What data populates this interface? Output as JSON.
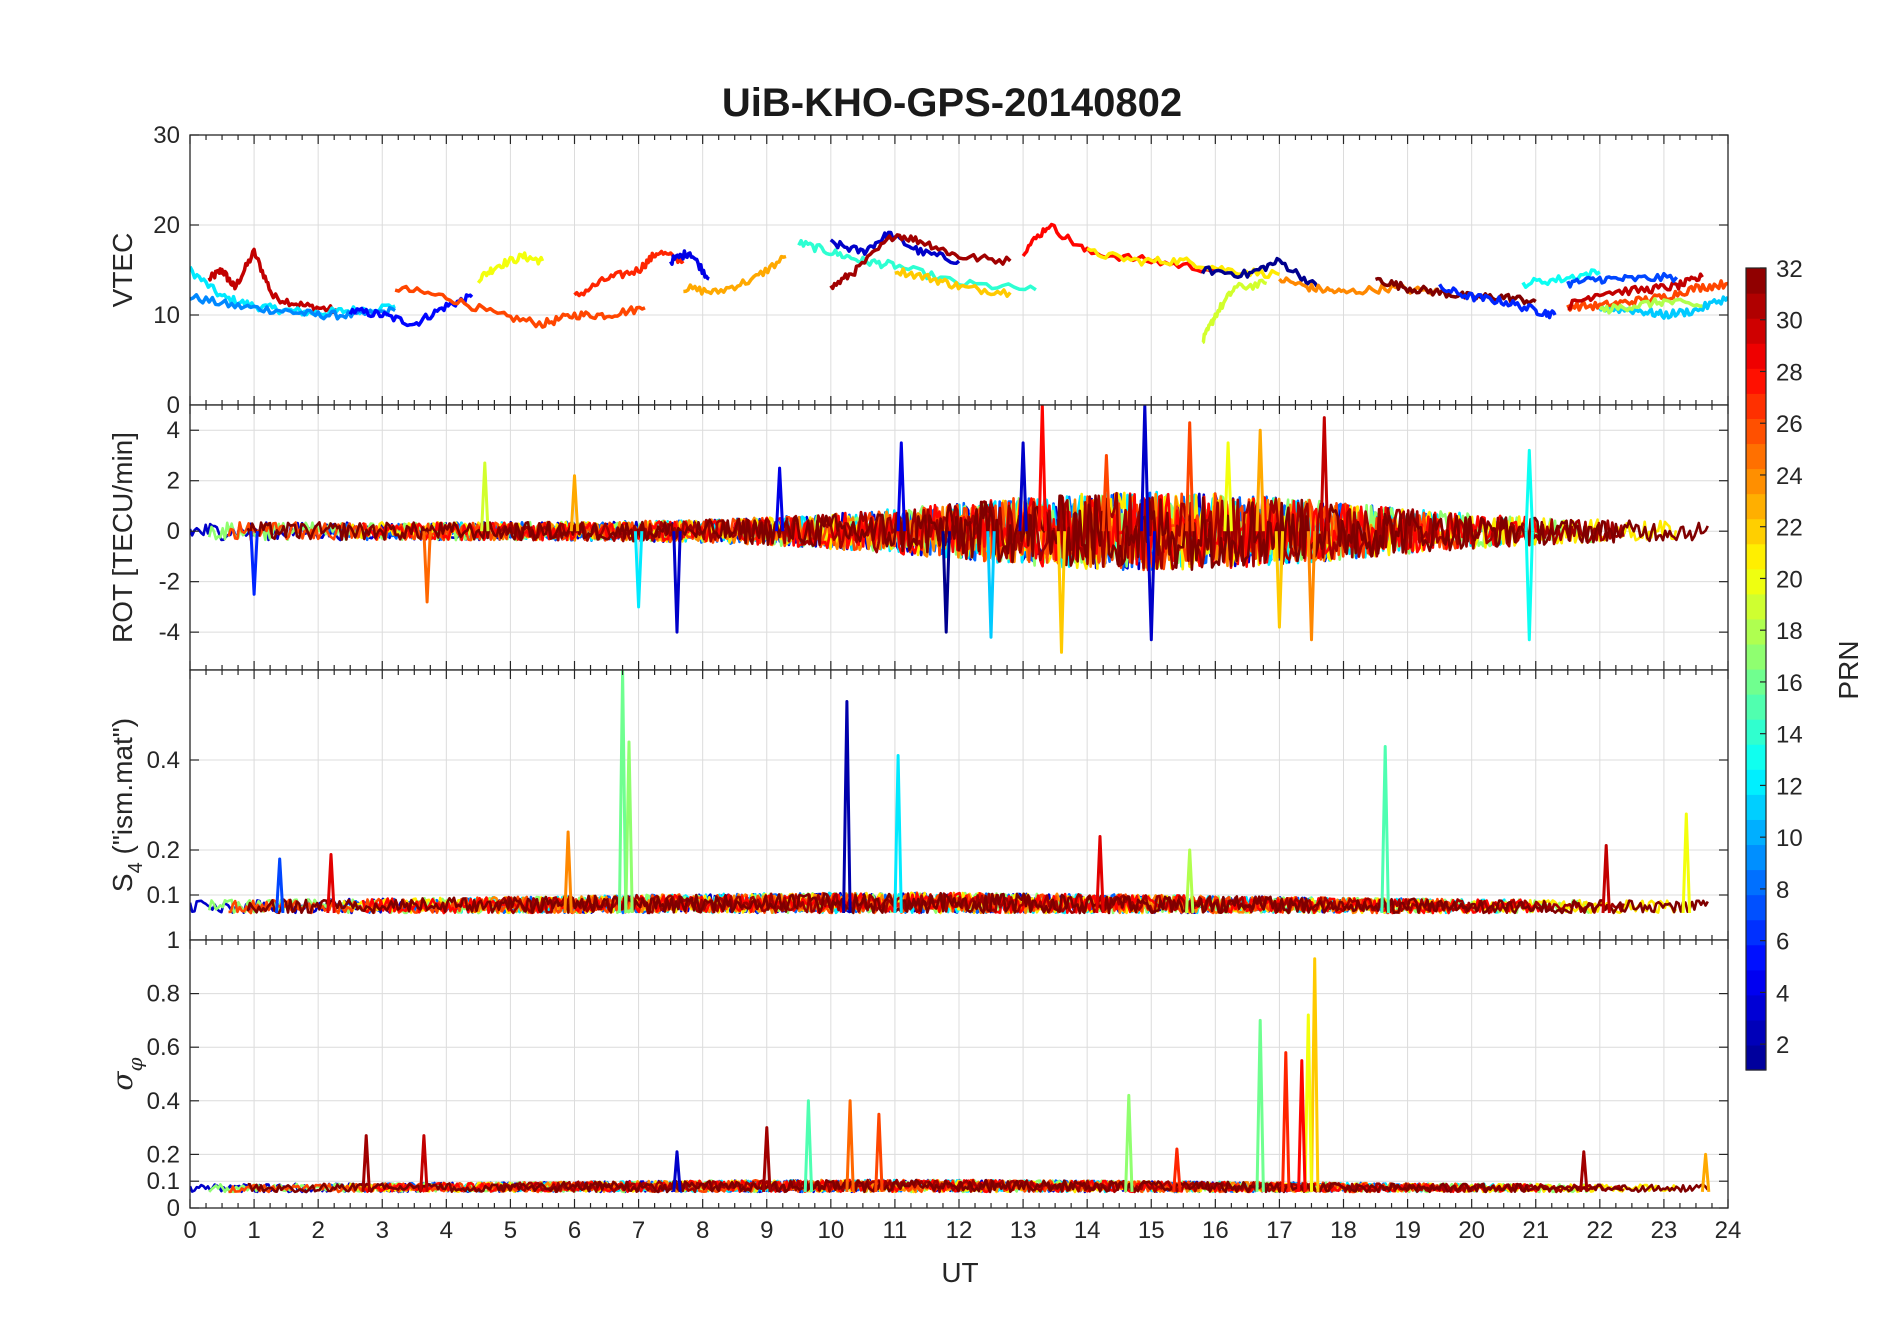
{
  "chart_data": {
    "type": "line",
    "title": "UiB-KHO-GPS-20140802",
    "xlabel": "UT",
    "xlim": [
      0,
      24
    ],
    "x_ticks": [
      "0",
      "1",
      "2",
      "3",
      "4",
      "5",
      "6",
      "7",
      "8",
      "9",
      "10",
      "11",
      "12",
      "13",
      "14",
      "15",
      "16",
      "17",
      "18",
      "19",
      "20",
      "21",
      "22",
      "23",
      "24"
    ],
    "grid": true,
    "colormap": "jet",
    "colorbar": {
      "label": "PRN",
      "range": [
        1,
        32
      ],
      "tick_labels": [
        "2",
        "4",
        "6",
        "8",
        "10",
        "12",
        "14",
        "16",
        "18",
        "20",
        "22",
        "24",
        "26",
        "28",
        "30",
        "32"
      ],
      "placement": "right",
      "colors": [
        "#00008f",
        "#0000df",
        "#0030ff",
        "#0080ff",
        "#00cfff",
        "#20ffdf",
        "#70ff8f",
        "#bfff40",
        "#ffef00",
        "#ffa000",
        "#ff5000",
        "#f00000",
        "#a00000",
        "#800000"
      ]
    },
    "panels": [
      {
        "id": "vtec",
        "ylabel": "VTEC",
        "ylim": [
          0,
          30
        ],
        "y_ticks": [
          "10",
          "20",
          "30"
        ],
        "y_tick_values": [
          10,
          20,
          30
        ],
        "series": [
          {
            "prn": 30,
            "x": [
              0.3,
              0.5,
              0.7,
              1.0,
              1.3,
              1.8,
              2.3
            ],
            "y": [
              14,
              15,
              13,
              17,
              12,
              11,
              10.5
            ]
          },
          {
            "prn": 12,
            "x": [
              0,
              0.5,
              1,
              1.5,
              2,
              2.5,
              3.2
            ],
            "y": [
              15,
              12,
              11,
              10.5,
              10.2,
              10.5,
              11
            ]
          },
          {
            "prn": 9,
            "x": [
              0,
              0.7,
              1.4,
              2,
              2.6,
              3.2
            ],
            "y": [
              12,
              11,
              10.5,
              10,
              10,
              10.5
            ]
          },
          {
            "prn": 5,
            "x": [
              2.5,
              3,
              3.5,
              4,
              4.4
            ],
            "y": [
              10.5,
              10,
              9,
              11,
              12
            ]
          },
          {
            "prn": 26,
            "x": [
              3.2,
              4,
              4.8,
              5.5,
              6,
              6.5,
              7.1
            ],
            "y": [
              13,
              12,
              10,
              9,
              10,
              10,
              10.8
            ]
          },
          {
            "prn": 20,
            "x": [
              4.5,
              4.8,
              5.2,
              5.5
            ],
            "y": [
              14,
              15.5,
              16.5,
              16
            ]
          },
          {
            "prn": 27,
            "x": [
              6,
              6.5,
              7,
              7.3,
              7.7
            ],
            "y": [
              12,
              14,
              15,
              17,
              16
            ]
          },
          {
            "prn": 4,
            "x": [
              7.5,
              7.8,
              8.1
            ],
            "y": [
              16,
              17,
              14
            ]
          },
          {
            "prn": 23,
            "x": [
              7.7,
              8.2,
              8.8,
              9.3
            ],
            "y": [
              13,
              12.5,
              14,
              16.5
            ]
          },
          {
            "prn": 14,
            "x": [
              9.5,
              10,
              10.5,
              11,
              12,
              13.2
            ],
            "y": [
              18,
              17,
              16,
              15.5,
              13.5,
              12.8
            ]
          },
          {
            "prn": 3,
            "x": [
              10,
              10.5,
              10.9,
              11.4,
              12
            ],
            "y": [
              18,
              17,
              19,
              17,
              16
            ]
          },
          {
            "prn": 31,
            "x": [
              10,
              10.4,
              11,
              11.5,
              12,
              12.8
            ],
            "y": [
              13,
              15,
              19,
              18,
              16.5,
              16
            ]
          },
          {
            "prn": 22,
            "x": [
              11,
              11.6,
              12.1,
              12.8
            ],
            "y": [
              15,
              14,
              13,
              12.5
            ]
          },
          {
            "prn": 28,
            "x": [
              13,
              13.4,
              14,
              15,
              16
            ],
            "y": [
              17,
              20,
              17,
              16,
              15
            ]
          },
          {
            "prn": 21,
            "x": [
              14,
              14.8,
              15.5,
              16.2,
              17
            ],
            "y": [
              17,
              16,
              16,
              15,
              14.5
            ]
          },
          {
            "prn": 19,
            "x": [
              15.8,
              16,
              16.3,
              16.8
            ],
            "y": [
              7,
              10,
              13,
              13.5
            ]
          },
          {
            "prn": 1,
            "x": [
              15.8,
              16.5,
              17,
              17.6
            ],
            "y": [
              15,
              14.5,
              16,
              13
            ]
          },
          {
            "prn": 24,
            "x": [
              17,
              17.5,
              18,
              18.7,
              19.5
            ],
            "y": [
              14,
              13,
              12.5,
              13,
              12.5
            ]
          },
          {
            "prn": 32,
            "x": [
              18.5,
              19,
              19.5,
              20,
              20.5,
              21
            ],
            "y": [
              14,
              13,
              12.5,
              12,
              12,
              11.5
            ]
          },
          {
            "prn": 6,
            "x": [
              19.5,
              20,
              20.5,
              21,
              21.3
            ],
            "y": [
              13,
              12,
              11.5,
              10.5,
              10
            ]
          },
          {
            "prn": 13,
            "x": [
              20.8,
              21.4,
              22
            ],
            "y": [
              13.5,
              14,
              14.8
            ]
          },
          {
            "prn": 26,
            "x": [
              21.5,
              22,
              22.5,
              23,
              23.5,
              24
            ],
            "y": [
              11,
              11,
              11.5,
              12,
              13,
              13.5
            ]
          },
          {
            "prn": 30,
            "x": [
              21.5,
              22,
              22.7,
              23.2,
              23.6
            ],
            "y": [
              11,
              12.5,
              12.8,
              13.2,
              14.2
            ]
          },
          {
            "prn": 11,
            "x": [
              22,
              22.6,
              23,
              23.5,
              24
            ],
            "y": [
              10.8,
              10.5,
              10,
              10.5,
              12
            ]
          },
          {
            "prn": 7,
            "x": [
              21.5,
              22,
              22.5,
              23.2
            ],
            "y": [
              13.5,
              14,
              14,
              14.2
            ]
          },
          {
            "prn": 18,
            "x": [
              22,
              22.5,
              23,
              23.6
            ],
            "y": [
              10.5,
              11,
              11.5,
              11
            ]
          }
        ]
      },
      {
        "id": "rot",
        "ylabel": "ROT [TECU/min]",
        "ylim": [
          -5.5,
          5
        ],
        "y_ticks": [
          "-4",
          "-2",
          "0",
          "2",
          "4"
        ],
        "y_tick_values": [
          -4,
          -2,
          0,
          2,
          4
        ],
        "top_label": "0",
        "spikes": [
          {
            "x": 7.6,
            "y": -4.0,
            "prn": 3
          },
          {
            "x": 9.2,
            "y": 2.5,
            "prn": 4
          },
          {
            "x": 11.1,
            "y": 3.5,
            "prn": 4
          },
          {
            "x": 11.8,
            "y": -4.0,
            "prn": 1
          },
          {
            "x": 12.5,
            "y": -4.2,
            "prn": 11
          },
          {
            "x": 13.0,
            "y": 3.5,
            "prn": 3
          },
          {
            "x": 13.3,
            "y": 5.0,
            "prn": 28
          },
          {
            "x": 13.6,
            "y": -4.8,
            "prn": 22
          },
          {
            "x": 14.3,
            "y": 3.0,
            "prn": 26
          },
          {
            "x": 14.9,
            "y": 5.0,
            "prn": 3
          },
          {
            "x": 15.0,
            "y": -4.3,
            "prn": 3
          },
          {
            "x": 15.6,
            "y": 4.3,
            "prn": 26
          },
          {
            "x": 16.2,
            "y": 3.5,
            "prn": 20
          },
          {
            "x": 16.7,
            "y": 4.0,
            "prn": 23
          },
          {
            "x": 17.0,
            "y": -3.8,
            "prn": 22
          },
          {
            "x": 17.5,
            "y": -4.3,
            "prn": 24
          },
          {
            "x": 17.7,
            "y": 4.5,
            "prn": 30
          },
          {
            "x": 20.9,
            "y": 3.2,
            "prn": 13
          },
          {
            "x": 20.9,
            "y": -4.3,
            "prn": 13
          },
          {
            "x": 3.7,
            "y": -2.8,
            "prn": 25
          },
          {
            "x": 6.0,
            "y": 2.2,
            "prn": 23
          },
          {
            "x": 7.0,
            "y": -3.0,
            "prn": 12
          },
          {
            "x": 4.6,
            "y": 2.7,
            "prn": 19
          },
          {
            "x": 1.0,
            "y": -2.5,
            "prn": 6
          }
        ]
      },
      {
        "id": "s4",
        "ylabel": "S4 (\"ism.mat\")",
        "ylabel_main": "S",
        "ylabel_sub": "4",
        "ylabel_rest": " (\"ism.mat\")",
        "ylim": [
          0,
          0.6
        ],
        "y_ticks": [
          "0.1",
          "0.2",
          "0.4"
        ],
        "y_tick_values": [
          0.1,
          0.2,
          0.4
        ],
        "spikes": [
          {
            "x": 6.75,
            "y": 0.6,
            "prn": 16
          },
          {
            "x": 6.85,
            "y": 0.44,
            "prn": 17
          },
          {
            "x": 10.25,
            "y": 0.53,
            "prn": 2
          },
          {
            "x": 11.05,
            "y": 0.41,
            "prn": 12
          },
          {
            "x": 18.65,
            "y": 0.43,
            "prn": 15
          },
          {
            "x": 23.35,
            "y": 0.28,
            "prn": 20
          },
          {
            "x": 5.9,
            "y": 0.24,
            "prn": 24
          },
          {
            "x": 14.2,
            "y": 0.23,
            "prn": 29
          },
          {
            "x": 22.1,
            "y": 0.21,
            "prn": 30
          },
          {
            "x": 2.2,
            "y": 0.19,
            "prn": 29
          },
          {
            "x": 1.4,
            "y": 0.18,
            "prn": 7
          },
          {
            "x": 15.6,
            "y": 0.2,
            "prn": 18
          }
        ]
      },
      {
        "id": "sigma_phi",
        "ylabel": "σ_φ",
        "ylabel_main": "σ",
        "ylabel_sub": "φ",
        "ylim": [
          0,
          1
        ],
        "y_ticks": [
          "0",
          "0.1",
          "0.2",
          "0.4",
          "0.6",
          "0.8"
        ],
        "y_tick_values": [
          0,
          0.1,
          0.2,
          0.4,
          0.6,
          0.8
        ],
        "top_label": "1",
        "spikes": [
          {
            "x": 17.55,
            "y": 0.93,
            "prn": 22
          },
          {
            "x": 17.45,
            "y": 0.72,
            "prn": 20
          },
          {
            "x": 16.7,
            "y": 0.7,
            "prn": 16
          },
          {
            "x": 17.1,
            "y": 0.58,
            "prn": 27
          },
          {
            "x": 17.35,
            "y": 0.55,
            "prn": 28
          },
          {
            "x": 14.65,
            "y": 0.42,
            "prn": 17
          },
          {
            "x": 9.65,
            "y": 0.4,
            "prn": 15
          },
          {
            "x": 10.3,
            "y": 0.4,
            "prn": 25
          },
          {
            "x": 10.75,
            "y": 0.35,
            "prn": 26
          },
          {
            "x": 9.0,
            "y": 0.3,
            "prn": 31
          },
          {
            "x": 2.75,
            "y": 0.27,
            "prn": 31
          },
          {
            "x": 3.65,
            "y": 0.27,
            "prn": 30
          },
          {
            "x": 21.75,
            "y": 0.21,
            "prn": 31
          },
          {
            "x": 23.65,
            "y": 0.2,
            "prn": 23
          },
          {
            "x": 7.6,
            "y": 0.21,
            "prn": 3
          },
          {
            "x": 15.4,
            "y": 0.22,
            "prn": 27
          }
        ]
      }
    ]
  }
}
